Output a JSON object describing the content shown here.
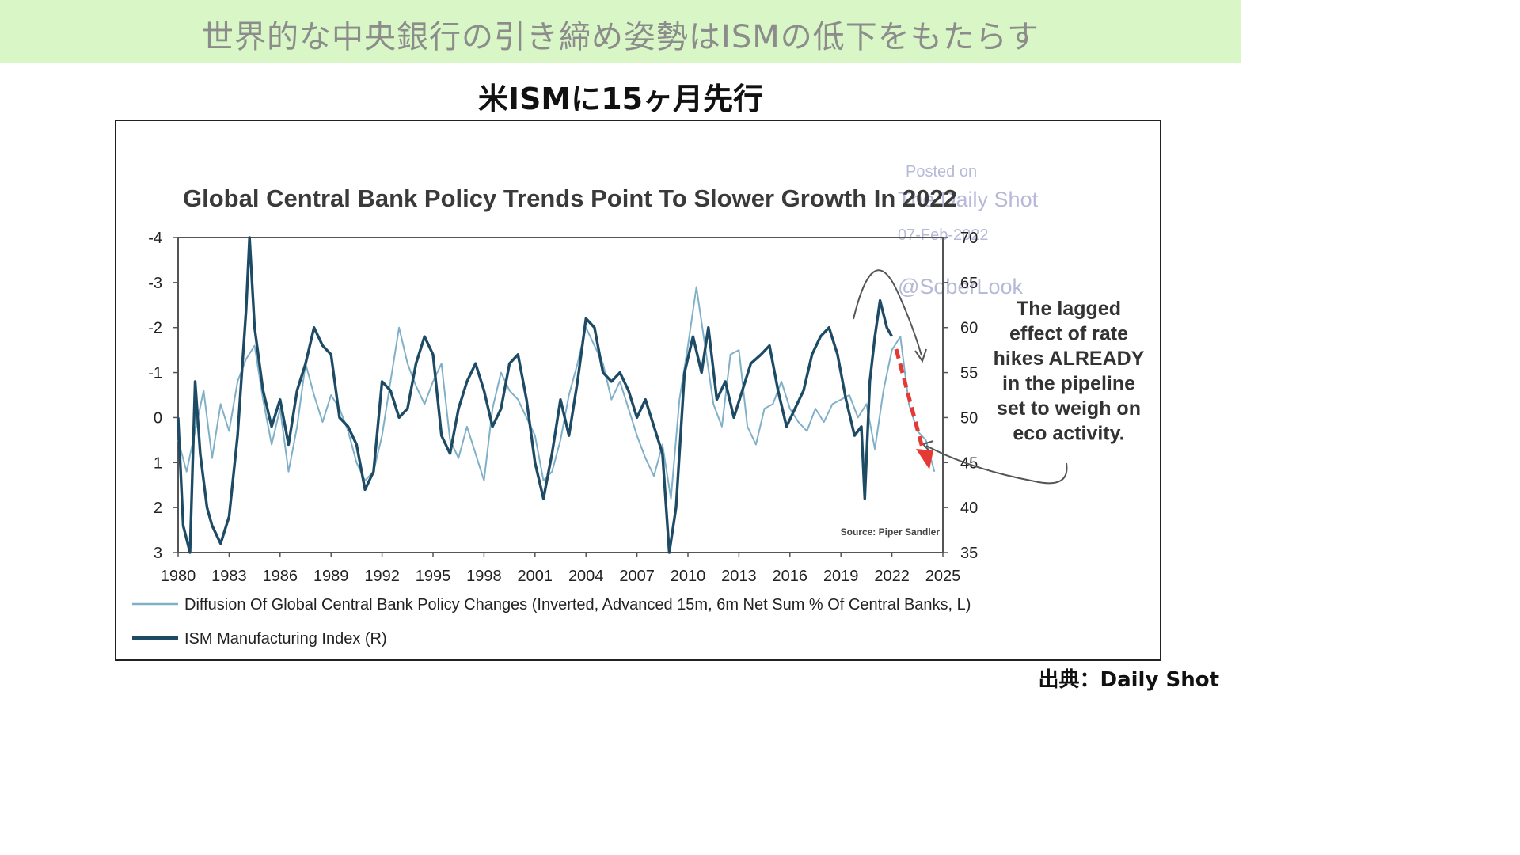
{
  "page": {
    "banner_title": "世界的な中央銀行の引き締め姿勢はISMの低下をもたらす",
    "subtitle": "米ISMに15ヶ月先行",
    "source_credit": "出典：Daily Shot",
    "banner_color": "#d9f7c6"
  },
  "chart_data": {
    "type": "line",
    "title": "Global Central Bank Policy Trends Point To Slower Growth In 2022",
    "watermark": [
      "Posted on",
      "The Daily Shot",
      "07-Feb-2022",
      "@SoberLook"
    ],
    "annotation": [
      "The lagged",
      "effect of rate",
      "hikes ALREADY",
      "in the pipeline",
      "set to weigh on",
      "eco activity."
    ],
    "source_note": "Source: Piper Sandler",
    "x_ticks": [
      "1980",
      "1983",
      "1986",
      "1989",
      "1992",
      "1995",
      "1998",
      "2001",
      "2004",
      "2007",
      "2010",
      "2013",
      "2016",
      "2019",
      "2022",
      "2025"
    ],
    "xlim": [
      1980,
      2025
    ],
    "y_left": {
      "ticks": [
        "-4",
        "-3",
        "-2",
        "-1",
        "0",
        "1",
        "2",
        "3"
      ],
      "lim": [
        -4,
        3
      ],
      "inverted": true
    },
    "y_right": {
      "ticks": [
        "70",
        "65",
        "60",
        "55",
        "50",
        "45",
        "40",
        "35"
      ],
      "lim": [
        35,
        70
      ]
    },
    "grid": false,
    "legend": "bottom",
    "series": [
      {
        "name": "Diffusion Of Global Central Bank Policy Changes (Inverted, Advanced 15m, 6m Net Sum % Of Central Banks, L)",
        "axis": "left",
        "color": "#7fb0c8",
        "points": [
          [
            1980.0,
            0.5
          ],
          [
            1980.5,
            1.2
          ],
          [
            1981.0,
            0.3
          ],
          [
            1981.5,
            -0.6
          ],
          [
            1982.0,
            0.9
          ],
          [
            1982.5,
            -0.3
          ],
          [
            1983.0,
            0.3
          ],
          [
            1983.5,
            -0.8
          ],
          [
            1984.0,
            -1.3
          ],
          [
            1984.5,
            -1.6
          ],
          [
            1985.0,
            -0.4
          ],
          [
            1985.5,
            0.6
          ],
          [
            1986.0,
            -0.2
          ],
          [
            1986.5,
            1.2
          ],
          [
            1987.0,
            0.2
          ],
          [
            1987.5,
            -1.2
          ],
          [
            1988.0,
            -0.5
          ],
          [
            1988.5,
            0.1
          ],
          [
            1989.0,
            -0.5
          ],
          [
            1989.5,
            -0.2
          ],
          [
            1990.0,
            0.3
          ],
          [
            1990.5,
            1.0
          ],
          [
            1991.0,
            1.4
          ],
          [
            1991.5,
            1.2
          ],
          [
            1992.0,
            0.4
          ],
          [
            1992.5,
            -0.8
          ],
          [
            1993.0,
            -2.0
          ],
          [
            1993.5,
            -1.2
          ],
          [
            1994.0,
            -0.7
          ],
          [
            1994.5,
            -0.3
          ],
          [
            1995.0,
            -0.8
          ],
          [
            1995.5,
            -1.2
          ],
          [
            1996.0,
            0.5
          ],
          [
            1996.5,
            0.9
          ],
          [
            1997.0,
            0.2
          ],
          [
            1997.5,
            0.8
          ],
          [
            1998.0,
            1.4
          ],
          [
            1998.5,
            -0.2
          ],
          [
            1999.0,
            -1.0
          ],
          [
            1999.5,
            -0.6
          ],
          [
            2000.0,
            -0.4
          ],
          [
            2000.5,
            0.0
          ],
          [
            2001.0,
            0.4
          ],
          [
            2001.5,
            1.4
          ],
          [
            2002.0,
            1.2
          ],
          [
            2002.5,
            0.5
          ],
          [
            2003.0,
            -0.5
          ],
          [
            2003.5,
            -1.2
          ],
          [
            2004.0,
            -2.0
          ],
          [
            2004.5,
            -1.6
          ],
          [
            2005.0,
            -1.2
          ],
          [
            2005.5,
            -0.4
          ],
          [
            2006.0,
            -0.8
          ],
          [
            2006.5,
            -0.2
          ],
          [
            2007.0,
            0.4
          ],
          [
            2007.5,
            0.9
          ],
          [
            2008.0,
            1.3
          ],
          [
            2008.5,
            0.6
          ],
          [
            2009.0,
            1.8
          ],
          [
            2009.5,
            -0.4
          ],
          [
            2010.0,
            -1.6
          ],
          [
            2010.5,
            -2.9
          ],
          [
            2011.0,
            -1.6
          ],
          [
            2011.5,
            -0.3
          ],
          [
            2012.0,
            0.2
          ],
          [
            2012.5,
            -1.4
          ],
          [
            2013.0,
            -1.5
          ],
          [
            2013.5,
            0.2
          ],
          [
            2014.0,
            0.6
          ],
          [
            2014.5,
            -0.2
          ],
          [
            2015.0,
            -0.3
          ],
          [
            2015.5,
            -0.8
          ],
          [
            2016.0,
            -0.2
          ],
          [
            2016.5,
            0.1
          ],
          [
            2017.0,
            0.3
          ],
          [
            2017.5,
            -0.2
          ],
          [
            2018.0,
            0.1
          ],
          [
            2018.5,
            -0.3
          ],
          [
            2019.0,
            -0.4
          ],
          [
            2019.5,
            -0.5
          ],
          [
            2020.0,
            0.0
          ],
          [
            2020.5,
            -0.3
          ],
          [
            2021.0,
            0.7
          ],
          [
            2021.5,
            -0.6
          ],
          [
            2022.0,
            -1.5
          ],
          [
            2022.5,
            -1.8
          ],
          [
            2023.0,
            -0.3
          ],
          [
            2023.5,
            0.3
          ],
          [
            2024.0,
            0.5
          ],
          [
            2024.5,
            1.2
          ]
        ]
      },
      {
        "name": "ISM Manufacturing Index (R)",
        "axis": "right",
        "color": "#1d4a64",
        "points": [
          [
            1980.0,
            50
          ],
          [
            1980.3,
            38
          ],
          [
            1980.7,
            35
          ],
          [
            1981.0,
            54
          ],
          [
            1981.3,
            46
          ],
          [
            1981.7,
            40
          ],
          [
            1982.0,
            38
          ],
          [
            1982.5,
            36
          ],
          [
            1983.0,
            39
          ],
          [
            1983.5,
            48
          ],
          [
            1984.0,
            62
          ],
          [
            1984.2,
            70
          ],
          [
            1984.5,
            60
          ],
          [
            1985.0,
            53
          ],
          [
            1985.5,
            49
          ],
          [
            1986.0,
            52
          ],
          [
            1986.5,
            47
          ],
          [
            1987.0,
            53
          ],
          [
            1987.5,
            56
          ],
          [
            1988.0,
            60
          ],
          [
            1988.5,
            58
          ],
          [
            1989.0,
            57
          ],
          [
            1989.5,
            50
          ],
          [
            1990.0,
            49
          ],
          [
            1990.5,
            47
          ],
          [
            1991.0,
            42
          ],
          [
            1991.5,
            44
          ],
          [
            1992.0,
            54
          ],
          [
            1992.5,
            53
          ],
          [
            1993.0,
            50
          ],
          [
            1993.5,
            51
          ],
          [
            1994.0,
            56
          ],
          [
            1994.5,
            59
          ],
          [
            1995.0,
            57
          ],
          [
            1995.5,
            48
          ],
          [
            1996.0,
            46
          ],
          [
            1996.5,
            51
          ],
          [
            1997.0,
            54
          ],
          [
            1997.5,
            56
          ],
          [
            1998.0,
            53
          ],
          [
            1998.5,
            49
          ],
          [
            1999.0,
            51
          ],
          [
            1999.5,
            56
          ],
          [
            2000.0,
            57
          ],
          [
            2000.5,
            52
          ],
          [
            2001.0,
            45
          ],
          [
            2001.5,
            41
          ],
          [
            2002.0,
            46
          ],
          [
            2002.5,
            52
          ],
          [
            2003.0,
            48
          ],
          [
            2003.5,
            54
          ],
          [
            2004.0,
            61
          ],
          [
            2004.5,
            60
          ],
          [
            2005.0,
            55
          ],
          [
            2005.5,
            54
          ],
          [
            2006.0,
            55
          ],
          [
            2006.5,
            53
          ],
          [
            2007.0,
            50
          ],
          [
            2007.5,
            52
          ],
          [
            2008.0,
            49
          ],
          [
            2008.5,
            46
          ],
          [
            2008.9,
            35
          ],
          [
            2009.3,
            40
          ],
          [
            2009.8,
            55
          ],
          [
            2010.3,
            59
          ],
          [
            2010.8,
            55
          ],
          [
            2011.2,
            60
          ],
          [
            2011.7,
            52
          ],
          [
            2012.2,
            54
          ],
          [
            2012.7,
            50
          ],
          [
            2013.2,
            53
          ],
          [
            2013.7,
            56
          ],
          [
            2014.3,
            57
          ],
          [
            2014.8,
            58
          ],
          [
            2015.3,
            53
          ],
          [
            2015.8,
            49
          ],
          [
            2016.3,
            51
          ],
          [
            2016.8,
            53
          ],
          [
            2017.3,
            57
          ],
          [
            2017.8,
            59
          ],
          [
            2018.3,
            60
          ],
          [
            2018.8,
            57
          ],
          [
            2019.3,
            52
          ],
          [
            2019.8,
            48
          ],
          [
            2020.2,
            49
          ],
          [
            2020.4,
            41
          ],
          [
            2020.7,
            54
          ],
          [
            2021.0,
            59
          ],
          [
            2021.3,
            63
          ],
          [
            2021.7,
            60
          ],
          [
            2022.0,
            59
          ]
        ]
      }
    ]
  }
}
